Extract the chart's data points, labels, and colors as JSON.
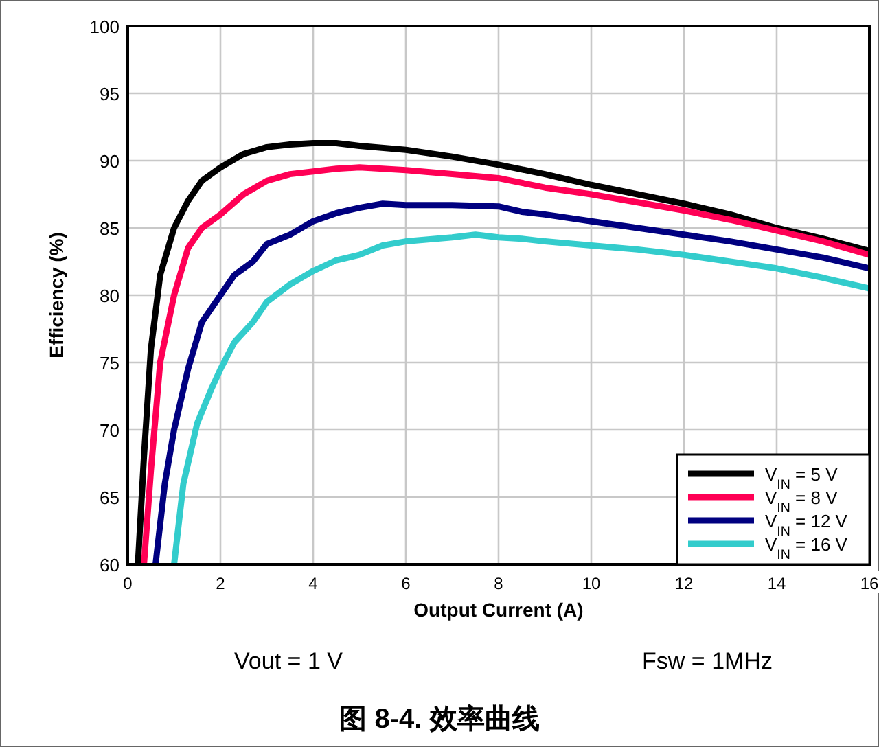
{
  "chart_data": {
    "type": "line",
    "title": "图 8-4. 效率曲线",
    "xlabel": "Output Current (A)",
    "ylabel": "Efficiency (%)",
    "annotations": [
      "Vout = 1 V",
      "Fsw = 1MHz"
    ],
    "xlim": [
      0,
      16
    ],
    "xticks": [
      0,
      2,
      4,
      6,
      8,
      10,
      12,
      14,
      16
    ],
    "ylim": [
      60,
      100
    ],
    "yticks": [
      60,
      65,
      70,
      75,
      80,
      85,
      90,
      95,
      100
    ],
    "grid": true,
    "legend": "bottom right",
    "line_style": "solid",
    "series": [
      {
        "name": "V$_{IN}$ = 5 V",
        "color": "#000000",
        "x": [
          0.22,
          0.35,
          0.5,
          0.7,
          1,
          1.3,
          1.6,
          2,
          2.5,
          3,
          3.5,
          4,
          4.5,
          5,
          6,
          7,
          8,
          9,
          10,
          11,
          12,
          13,
          14,
          15,
          16
        ],
        "values": [
          60,
          68,
          76,
          81.5,
          85,
          87,
          88.5,
          89.5,
          90.5,
          91,
          91.2,
          91.3,
          91.3,
          91.1,
          90.8,
          90.3,
          89.7,
          89,
          88.2,
          87.5,
          86.8,
          86,
          85,
          84.2,
          83.3
        ]
      },
      {
        "name": "V$_{IN}$ = 8 V",
        "color": "#ff0055",
        "x": [
          0.35,
          0.5,
          0.7,
          1,
          1.3,
          1.6,
          2,
          2.5,
          3,
          3.5,
          4,
          4.5,
          5,
          6,
          7,
          8,
          9,
          10,
          11,
          12,
          13,
          14,
          15,
          16
        ],
        "values": [
          60,
          67,
          75,
          80,
          83.5,
          85,
          86,
          87.5,
          88.5,
          89,
          89.2,
          89.4,
          89.5,
          89.3,
          89,
          88.7,
          88,
          87.5,
          86.9,
          86.3,
          85.6,
          84.8,
          84,
          83
        ]
      },
      {
        "name": "V$_{IN}$ = 12 V",
        "color": "#000080",
        "x": [
          0.6,
          0.8,
          1,
          1.3,
          1.6,
          2,
          2.3,
          2.7,
          3,
          3.5,
          4,
          4.5,
          5,
          5.5,
          6,
          7,
          8,
          8.5,
          9,
          10,
          11,
          12,
          13,
          14,
          15,
          16
        ],
        "values": [
          60,
          66,
          70,
          74.5,
          78,
          80,
          81.5,
          82.5,
          83.8,
          84.5,
          85.5,
          86.1,
          86.5,
          86.8,
          86.7,
          86.7,
          86.6,
          86.2,
          86,
          85.5,
          85,
          84.5,
          84,
          83.4,
          82.8,
          82
        ]
      },
      {
        "name": "V$_{IN}$ = 16 V",
        "color": "#33cccc",
        "x": [
          1,
          1.2,
          1.5,
          1.8,
          2,
          2.3,
          2.7,
          3,
          3.5,
          4,
          4.5,
          5,
          5.5,
          6,
          7,
          7.5,
          8,
          8.5,
          9,
          10,
          11,
          12,
          13,
          14,
          15,
          16
        ],
        "values": [
          60,
          66,
          70.5,
          73,
          74.5,
          76.5,
          78,
          79.5,
          80.8,
          81.8,
          82.6,
          83,
          83.7,
          84,
          84.3,
          84.5,
          84.3,
          84.2,
          84,
          83.7,
          83.4,
          83,
          82.5,
          82,
          81.3,
          80.5
        ]
      }
    ]
  }
}
